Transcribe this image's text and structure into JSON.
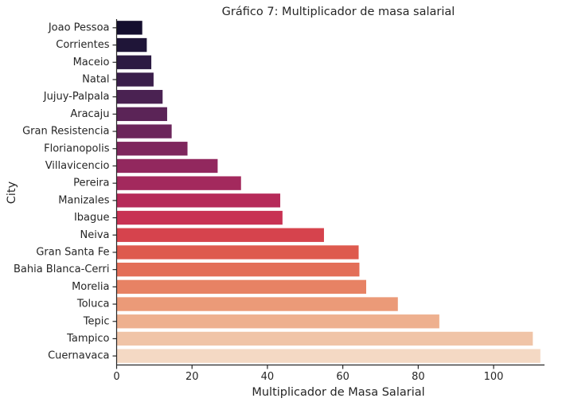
{
  "chart_data": {
    "type": "bar",
    "orientation": "horizontal",
    "title": "Gráfico 7: Multiplicador de masa salarial",
    "xlabel": "Multiplicador de Masa Salarial",
    "ylabel": "City",
    "xlim": [
      0,
      113.5
    ],
    "xticks": [
      0,
      20,
      40,
      60,
      80,
      100
    ],
    "grid": false,
    "categories": [
      "Joao Pessoa",
      "Corrientes",
      "Maceio",
      "Natal",
      "Jujuy-Palpala",
      "Aracaju",
      "Gran Resistencia",
      "Florianopolis",
      "Villavicencio",
      "Pereira",
      "Manizales",
      "Ibague",
      "Neiva",
      "Gran Santa Fe",
      "Bahia Blanca-Cerri",
      "Morelia",
      "Toluca",
      "Tepic",
      "Tampico",
      "Cuernavaca"
    ],
    "values": [
      6.8,
      8.0,
      9.2,
      9.8,
      12.2,
      13.4,
      14.6,
      18.8,
      26.8,
      33.0,
      43.4,
      44.0,
      55.0,
      64.2,
      64.4,
      66.2,
      74.6,
      85.6,
      110.4,
      112.4
    ],
    "colors": [
      "#140e2e",
      "#1f1538",
      "#2c1a42",
      "#3a1e4b",
      "#4a2252",
      "#5b2457",
      "#6c265b",
      "#7e275d",
      "#92285e",
      "#a3295d",
      "#b62a59",
      "#c83253",
      "#d6434d",
      "#de5a4e",
      "#e36e58",
      "#e78264",
      "#eb9a78",
      "#eeb08f",
      "#f0c4a7",
      "#f4d9c4"
    ]
  }
}
